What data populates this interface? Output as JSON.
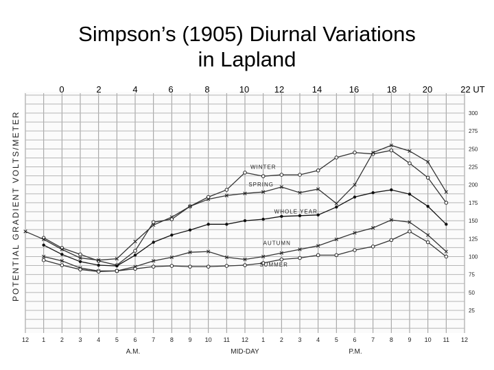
{
  "title_line1": "Simpson’s (1905) Diurnal Variations",
  "title_line2": "in Lapland",
  "chart_data": {
    "type": "line",
    "title": "Simpson’s (1905) Diurnal Variations in Lapland",
    "ylabel": "POTENTIAL GRADIENT VOLTS/METER",
    "xlabel": "MID-DAY",
    "x_top_labels": [
      "0",
      "2",
      "4",
      "6",
      "8",
      "10",
      "12",
      "14",
      "16",
      "18",
      "20",
      "22 UT"
    ],
    "x_bottom_labels": [
      "12",
      "1",
      "2",
      "3",
      "4",
      "5",
      "6",
      "7",
      "8",
      "9",
      "10",
      "11",
      "12",
      "1",
      "2",
      "3",
      "4",
      "5",
      "6",
      "7",
      "8",
      "9",
      "10",
      "11",
      "12"
    ],
    "am_label": "A.M.",
    "pm_label": "P.M.",
    "y_tick_labels": [
      "300",
      "275",
      "250",
      "225",
      "200",
      "175",
      "150",
      "125",
      "100",
      "75",
      "50",
      "25"
    ],
    "y_ticks": [
      300,
      275,
      250,
      225,
      200,
      175,
      150,
      125,
      100,
      75,
      50,
      25
    ],
    "ylim": [
      10,
      320
    ],
    "x": [
      0,
      1,
      2,
      3,
      4,
      5,
      6,
      7,
      8,
      9,
      10,
      11,
      12,
      13,
      14,
      15,
      16,
      17,
      18,
      19,
      20,
      21,
      22,
      23,
      24
    ],
    "grid": true,
    "series": [
      {
        "name": "WINTER",
        "color": "#333333",
        "values": [
          null,
          126,
          112,
          103,
          94,
          88,
          108,
          148,
          152,
          170,
          183,
          193,
          217,
          212,
          214,
          214,
          220,
          238,
          245,
          243,
          248,
          230,
          210,
          175,
          null
        ]
      },
      {
        "name": "SPRING",
        "color": "#333333",
        "values": [
          135,
          124,
          110,
          98,
          95,
          97,
          121,
          144,
          155,
          170,
          180,
          185,
          188,
          190,
          197,
          189,
          194,
          174,
          200,
          245,
          255,
          247,
          232,
          190,
          null
        ]
      },
      {
        "name": "WHOLE YEAR",
        "color": "#111111",
        "values": [
          null,
          116,
          103,
          93,
          88,
          87,
          102,
          120,
          130,
          137,
          145,
          145,
          150,
          152,
          156,
          157,
          158,
          169,
          183,
          189,
          193,
          187,
          170,
          145,
          null
        ]
      },
      {
        "name": "AUTUMN",
        "color": "#333333",
        "values": [
          null,
          100,
          94,
          84,
          80,
          80,
          86,
          94,
          99,
          106,
          107,
          99,
          96,
          100,
          105,
          110,
          115,
          124,
          133,
          140,
          151,
          148,
          130,
          107,
          null
        ]
      },
      {
        "name": "SUMMER",
        "color": "#333333",
        "values": [
          null,
          95,
          88,
          82,
          79,
          80,
          83,
          86,
          87,
          86,
          86,
          87,
          88,
          91,
          96,
          98,
          102,
          102,
          109,
          114,
          123,
          135,
          120,
          100,
          null
        ]
      }
    ]
  }
}
